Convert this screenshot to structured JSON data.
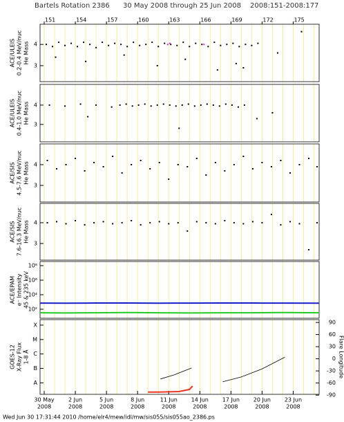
{
  "title": [
    "Bartels Rotation 2386",
    "30 May 2008 through 25 Jun 2008",
    "2008:151-2008:177"
  ],
  "footer": "Wed Jun 30 17:31:44 2010   /home/elr4/mew/idl/mw/sis055/sis055ao_2386.ps",
  "chart_data": [
    {
      "type": "scatter",
      "ylabel": [
        "ACE/ULEIS",
        "0.2-0.4 MeV/nuc",
        "He Mass"
      ],
      "xlim": [
        150.6,
        177.5
      ],
      "ylim": [
        2.25,
        4.95
      ],
      "yticks": [
        3,
        4
      ],
      "xticks": [
        151,
        154,
        157,
        160,
        163,
        166,
        169,
        172,
        175
      ],
      "xticks_position": "top",
      "minor_xticks": [
        151,
        152,
        153,
        154,
        155,
        156,
        157,
        158,
        159,
        160,
        161,
        162,
        163,
        164,
        165,
        166,
        167,
        168,
        169,
        170,
        171,
        172,
        173,
        174,
        175,
        176,
        177
      ],
      "series": [
        {
          "color": "#000000",
          "x": [
            151.2,
            151.8,
            152.4,
            153.0,
            153.6,
            154.2,
            154.8,
            155.4,
            156.0,
            156.6,
            157.2,
            157.8,
            158.4,
            159.0,
            159.6,
            160.2,
            160.8,
            161.4,
            162.0,
            162.6,
            163.2,
            163.8,
            164.4,
            165.0,
            165.6,
            166.2,
            166.8,
            167.4,
            168.0,
            168.6,
            169.2,
            169.8,
            170.4,
            171.0,
            171.6,
            152.1,
            155.0,
            158.7,
            161.9,
            164.6,
            167.7,
            169.5,
            170.2,
            173.5,
            175.8
          ],
          "values": [
            4.0,
            3.9,
            4.1,
            3.95,
            4.05,
            3.9,
            4.1,
            4.0,
            3.85,
            4.1,
            3.95,
            4.05,
            4.0,
            3.9,
            4.1,
            3.95,
            4.0,
            4.1,
            3.9,
            4.05,
            4.0,
            3.95,
            4.1,
            3.9,
            4.05,
            4.0,
            3.9,
            4.1,
            3.95,
            4.0,
            4.05,
            3.9,
            4.0,
            3.95,
            4.05,
            3.4,
            3.2,
            3.5,
            3.0,
            3.3,
            2.8,
            3.1,
            2.9,
            3.6,
            4.6
          ]
        },
        {
          "color": "#cc33cc",
          "x": [
            162.9,
            163.1,
            166.4
          ],
          "values": [
            4.0,
            4.05,
            4.0
          ]
        }
      ]
    },
    {
      "type": "scatter",
      "ylabel": [
        "ACE/ULEIS",
        "0.4-1.0 MeV/nuc",
        "He Mass"
      ],
      "xlim": [
        150.6,
        177.5
      ],
      "ylim": [
        2.1,
        5.07
      ],
      "yticks": [
        3,
        4
      ],
      "series": [
        {
          "color": "#000000",
          "x": [
            151.5,
            153.0,
            154.5,
            156.0,
            157.5,
            158.3,
            158.9,
            159.5,
            160.1,
            160.7,
            161.3,
            161.9,
            162.5,
            163.1,
            163.7,
            164.3,
            164.9,
            165.5,
            166.1,
            166.7,
            167.3,
            167.9,
            168.5,
            169.1,
            169.7,
            170.3,
            171.5,
            173.0,
            155.2,
            164.0
          ],
          "values": [
            4.0,
            3.95,
            4.05,
            4.0,
            3.9,
            4.0,
            4.05,
            3.95,
            4.0,
            4.05,
            3.95,
            4.0,
            4.05,
            4.0,
            3.95,
            4.0,
            4.05,
            3.95,
            4.0,
            4.05,
            4.0,
            3.95,
            4.05,
            4.0,
            3.9,
            4.0,
            3.3,
            3.6,
            3.4,
            2.8
          ]
        }
      ]
    },
    {
      "type": "scatter",
      "ylabel": [
        "ACE/SIS",
        "4.5-7.6 MeV/nuc",
        "He Mass"
      ],
      "xlim": [
        150.6,
        177.5
      ],
      "ylim": [
        2.2,
        5.0
      ],
      "yticks": [
        3,
        4
      ],
      "series": [
        {
          "color": "#000000",
          "x": [
            151.3,
            152.2,
            153.1,
            154.0,
            154.9,
            155.8,
            156.7,
            157.6,
            158.5,
            159.4,
            160.3,
            161.2,
            162.1,
            163.0,
            163.9,
            164.8,
            165.7,
            166.6,
            167.5,
            168.4,
            169.3,
            170.2,
            171.1,
            172.0,
            172.9,
            173.8,
            174.7,
            175.6,
            176.5,
            177.3
          ],
          "values": [
            4.2,
            3.8,
            4.0,
            4.3,
            3.7,
            4.1,
            3.9,
            4.4,
            3.6,
            4.0,
            4.2,
            3.8,
            4.1,
            3.3,
            4.0,
            3.9,
            4.3,
            3.5,
            4.1,
            3.7,
            4.0,
            4.4,
            3.8,
            4.1,
            3.9,
            4.2,
            3.6,
            4.0,
            4.3,
            3.9
          ]
        }
      ]
    },
    {
      "type": "scatter",
      "ylabel": [
        "ACE/SIS",
        "7.6-16.3 MeV/nuc",
        "He Mass"
      ],
      "xlim": [
        150.6,
        177.5
      ],
      "ylim": [
        2.2,
        4.93
      ],
      "yticks": [
        3,
        4
      ],
      "series": [
        {
          "color": "#000000",
          "x": [
            151.3,
            152.2,
            153.1,
            154.0,
            154.9,
            155.8,
            156.7,
            157.6,
            158.5,
            159.4,
            160.3,
            161.2,
            162.1,
            163.0,
            163.9,
            164.8,
            165.7,
            166.6,
            167.5,
            168.4,
            169.3,
            170.2,
            171.1,
            172.0,
            172.9,
            173.8,
            174.7,
            175.6,
            176.5,
            177.3
          ],
          "values": [
            4.0,
            4.05,
            3.95,
            4.1,
            3.9,
            4.0,
            4.05,
            3.95,
            4.0,
            4.1,
            3.9,
            4.0,
            4.05,
            3.95,
            4.0,
            3.6,
            4.05,
            4.0,
            3.95,
            4.1,
            4.0,
            3.95,
            4.05,
            4.0,
            4.4,
            3.9,
            4.05,
            3.95,
            2.7,
            4.0
          ]
        }
      ]
    },
    {
      "type": "line",
      "ylabel": [
        "ACE/EPAM",
        "e⁻ Intensity",
        "45 & 235 keV"
      ],
      "xlim": [
        150.6,
        177.5
      ],
      "ylog": true,
      "ylim": [
        5.8,
        370000000
      ],
      "yticks": [
        {
          "value": 100,
          "label": "10²"
        },
        {
          "value": 10000,
          "label": "10⁴"
        },
        {
          "value": 1000000,
          "label": "10⁶"
        },
        {
          "value": 100000000,
          "label": "10⁸"
        }
      ],
      "series": [
        {
          "color": "#1a1acc",
          "x": [
            150.6,
            153,
            156,
            159,
            162,
            165,
            168,
            171,
            174,
            177.5
          ],
          "values": [
            700,
            680,
            720,
            710,
            690,
            700,
            730,
            710,
            700,
            690
          ]
        },
        {
          "color": "#22cc22",
          "x": [
            150.6,
            153,
            156,
            159,
            162,
            165,
            168,
            171,
            174,
            177.5
          ],
          "values": [
            33,
            31,
            33,
            35,
            33,
            31,
            33,
            33,
            35,
            33
          ]
        }
      ]
    },
    {
      "type": "line",
      "ylabel": [
        "GOES-12",
        "X-Ray Flux",
        "1-8 Å"
      ],
      "xlim": [
        150.6,
        177.5
      ],
      "ylog": true,
      "ylim": [
        1.6e-09,
        0.00024
      ],
      "yticks": [
        {
          "value": 1e-08,
          "label": "A"
        },
        {
          "value": 1e-07,
          "label": "B"
        },
        {
          "value": 1e-06,
          "label": "C"
        },
        {
          "value": 1e-05,
          "label": "M"
        },
        {
          "value": 0.0001,
          "label": "X"
        }
      ],
      "y2label": "Flare Longitude",
      "y2lim": [
        -88,
        97
      ],
      "y2ticks": [
        -90,
        -60,
        -30,
        0,
        30,
        60,
        90
      ],
      "xticks_position": "bottom",
      "xticks": [
        {
          "value": 151,
          "label": [
            "30 May",
            "2008"
          ]
        },
        {
          "value": 154,
          "label": [
            "2 Jun",
            "2008"
          ]
        },
        {
          "value": 157,
          "label": [
            "5 Jun",
            "2008"
          ]
        },
        {
          "value": 160,
          "label": [
            "8 Jun",
            "2008"
          ]
        },
        {
          "value": 163,
          "label": [
            "11 Jun",
            "2008"
          ]
        },
        {
          "value": 166,
          "label": [
            "14 Jun",
            "2008"
          ]
        },
        {
          "value": 169,
          "label": [
            "17 Jun",
            "2008"
          ]
        },
        {
          "value": 172,
          "label": [
            "20 Jun",
            "2008"
          ]
        },
        {
          "value": 175,
          "label": [
            "23 Jun",
            "2008"
          ]
        }
      ],
      "series": [
        {
          "color": "#ee3322",
          "x": [
            161.0,
            162,
            163,
            164,
            165.0,
            165.3
          ],
          "values": [
            2.3e-09,
            2.3e-09,
            2.4e-09,
            2.5e-09,
            3.5e-09,
            6e-09
          ]
        },
        {
          "color": "#000000",
          "axis": "y2",
          "x": [
            162.2,
            163.5,
            165.2,
            166.5,
            168.2,
            170,
            172,
            174.2
          ],
          "values": [
            -50,
            -40,
            -23,
            null,
            -57,
            -45,
            -25,
            4
          ]
        }
      ]
    }
  ]
}
